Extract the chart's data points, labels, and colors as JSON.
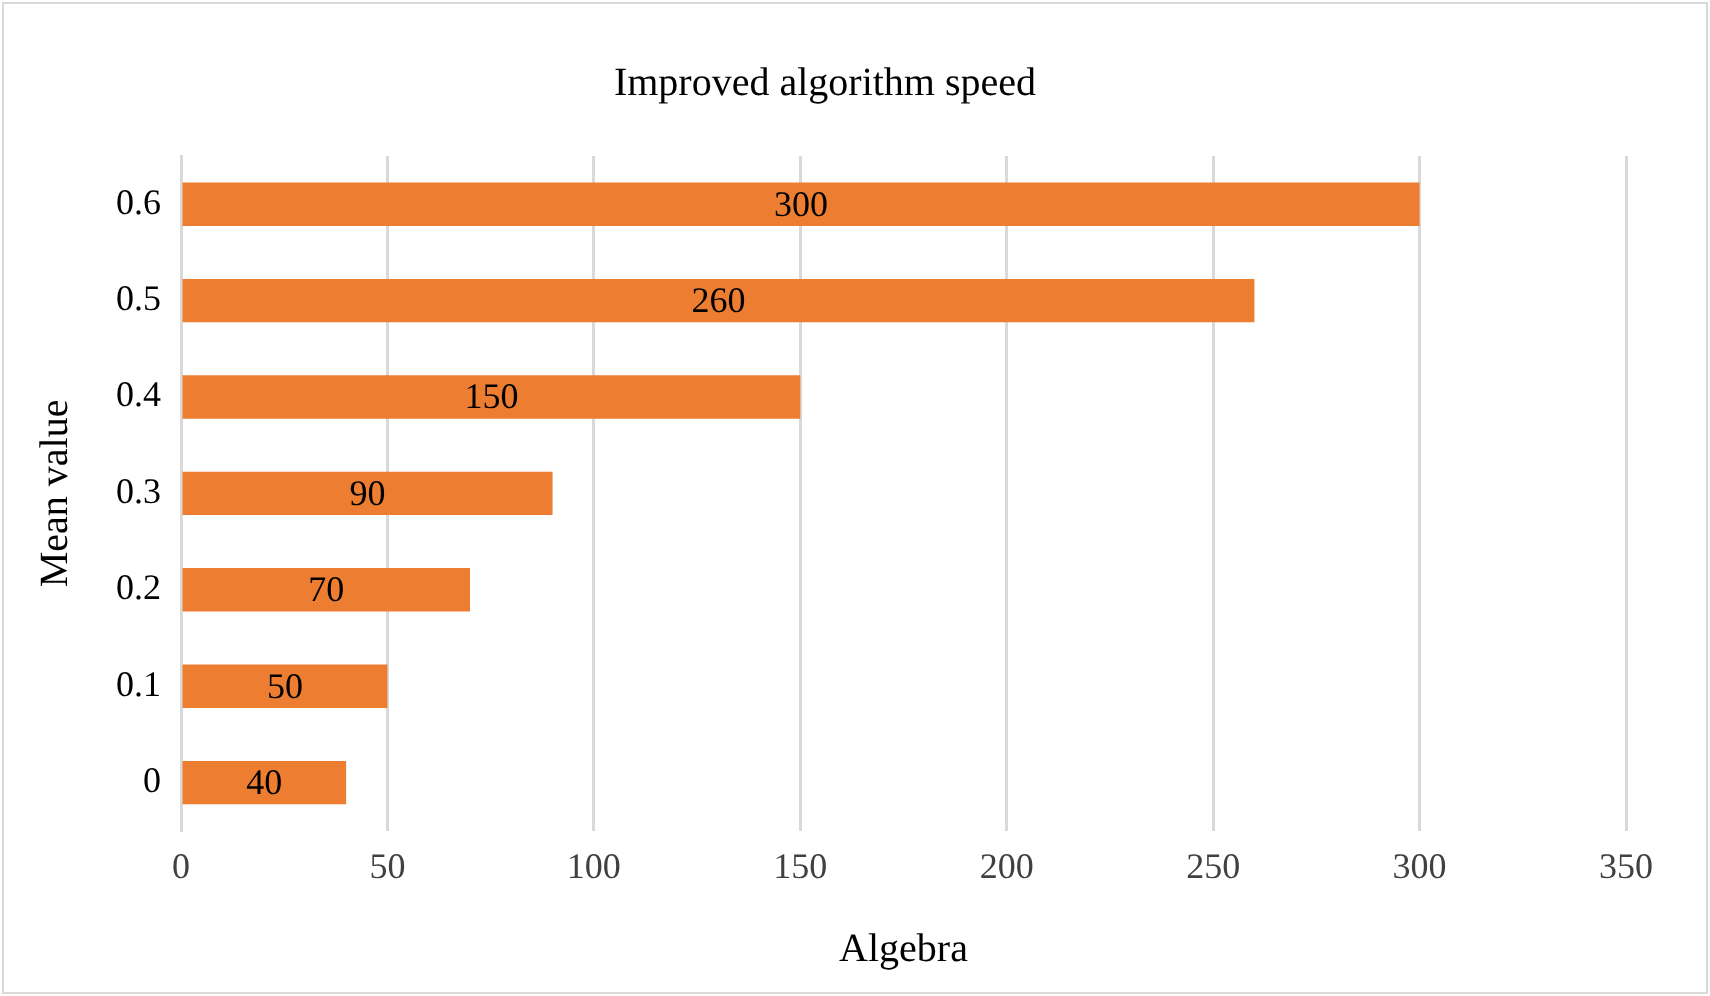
{
  "chart_data": {
    "type": "bar",
    "orientation": "horizontal",
    "title": "Improved algorithm speed",
    "xlabel": "Algebra",
    "ylabel": "Mean value",
    "categories": [
      "0.6",
      "0.5",
      "0.4",
      "0.3",
      "0.2",
      "0.1",
      "0"
    ],
    "values": [
      300,
      260,
      150,
      90,
      70,
      50,
      40
    ],
    "color": "#ed7d31",
    "xlim": [
      0,
      350
    ],
    "xticks": [
      0,
      50,
      100,
      150,
      200,
      250,
      300,
      350
    ],
    "grid": "x",
    "data_labels": true,
    "legend": false
  }
}
